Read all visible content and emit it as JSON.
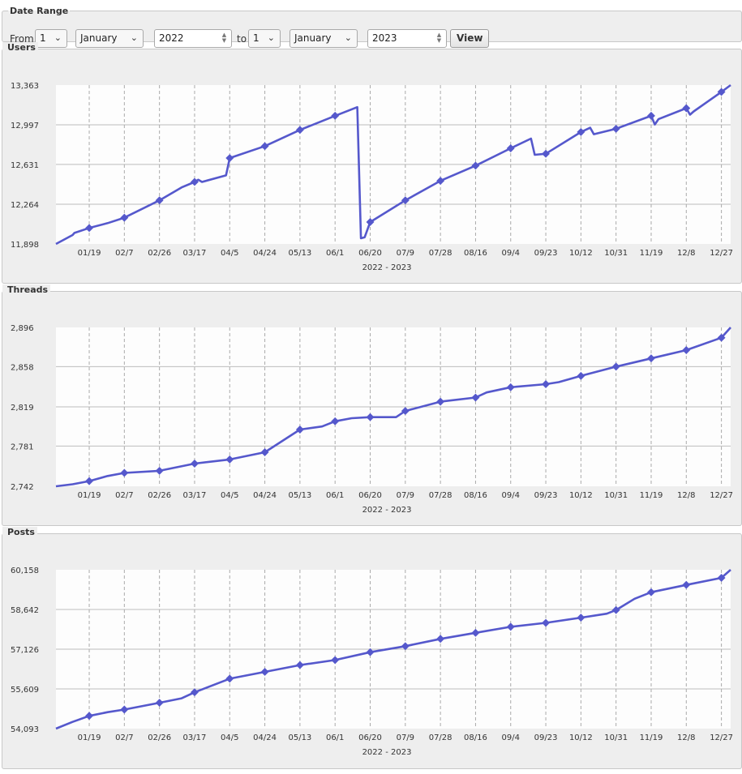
{
  "date_range": {
    "legend": "Date Range",
    "from_label": "From",
    "from_day": "1",
    "from_month": "January",
    "from_year": "2022",
    "to_label": "to",
    "to_day": "1",
    "to_month": "January",
    "to_year": "2023",
    "view_label": "View"
  },
  "colors": {
    "line": "#5558cc",
    "panel": "#eeeeee",
    "plot_bg": "#fdfdfd",
    "grid": "#bdbdbd"
  },
  "chart_data": [
    {
      "name": "users",
      "type": "line",
      "title": "Users",
      "xlabel": "2022 - 2023",
      "x_ticks": [
        "01/19",
        "02/7",
        "02/26",
        "03/17",
        "04/5",
        "04/24",
        "05/13",
        "06/1",
        "06/20",
        "07/9",
        "07/28",
        "08/16",
        "09/4",
        "09/23",
        "10/12",
        "10/31",
        "11/19",
        "12/8",
        "12/27"
      ],
      "y_ticks": [
        "11,898",
        "12,264",
        "12,631",
        "12,997",
        "13,363"
      ],
      "ylim": [
        11898,
        13363
      ],
      "x": [
        "01/01",
        "01/10",
        "01/11",
        "01/19",
        "01/29",
        "02/07",
        "02/26",
        "03/10",
        "03/17",
        "03/19",
        "03/21",
        "04/03",
        "04/05",
        "04/24",
        "05/13",
        "06/01",
        "06/13",
        "06/15",
        "06/17",
        "06/20",
        "07/09",
        "07/28",
        "08/16",
        "09/04",
        "09/15",
        "09/17",
        "09/23",
        "10/12",
        "10/17",
        "10/19",
        "10/31",
        "11/19",
        "11/21",
        "11/23",
        "12/08",
        "12/10",
        "12/12",
        "12/27",
        "01/01"
      ],
      "values": [
        11898,
        11980,
        12000,
        12045,
        12090,
        12140,
        12300,
        12420,
        12470,
        12490,
        12470,
        12530,
        12690,
        12800,
        12950,
        13080,
        13160,
        11950,
        11960,
        12100,
        12300,
        12480,
        12620,
        12780,
        12870,
        12720,
        12730,
        12930,
        12970,
        12910,
        12960,
        13080,
        13000,
        13050,
        13150,
        13090,
        13120,
        13300,
        13363
      ],
      "markers": [
        "01/19",
        "02/7",
        "02/26",
        "03/17",
        "04/5",
        "04/24",
        "05/13",
        "06/1",
        "06/20",
        "07/9",
        "07/28",
        "08/16",
        "09/4",
        "09/23",
        "10/12",
        "10/31",
        "11/19",
        "12/8",
        "12/27"
      ]
    },
    {
      "name": "threads",
      "type": "line",
      "title": "Threads",
      "xlabel": "2022 - 2023",
      "x_ticks": [
        "01/19",
        "02/7",
        "02/26",
        "03/17",
        "04/5",
        "04/24",
        "05/13",
        "06/1",
        "06/20",
        "07/9",
        "07/28",
        "08/16",
        "09/4",
        "09/23",
        "10/12",
        "10/31",
        "11/19",
        "12/8",
        "12/27"
      ],
      "y_ticks": [
        "2,742",
        "2,781",
        "2,819",
        "2,858",
        "2,896"
      ],
      "ylim": [
        2742,
        2896
      ],
      "x": [
        "01/01",
        "01/10",
        "01/19",
        "01/29",
        "02/07",
        "02/26",
        "03/17",
        "04/05",
        "04/24",
        "05/13",
        "05/25",
        "06/01",
        "06/10",
        "06/20",
        "07/04",
        "07/09",
        "07/28",
        "08/16",
        "08/22",
        "09/04",
        "09/23",
        "09/30",
        "10/12",
        "10/31",
        "11/19",
        "12/08",
        "12/27",
        "01/01"
      ],
      "values": [
        2742,
        2744,
        2747,
        2752,
        2755,
        2757,
        2764,
        2768,
        2775,
        2797,
        2800,
        2805,
        2808,
        2809,
        2809,
        2815,
        2824,
        2828,
        2833,
        2838,
        2841,
        2843,
        2849,
        2858,
        2866,
        2874,
        2886,
        2896
      ],
      "markers": [
        "01/19",
        "02/7",
        "02/26",
        "03/17",
        "04/5",
        "04/24",
        "05/13",
        "06/1",
        "06/20",
        "07/9",
        "07/28",
        "08/16",
        "09/4",
        "09/23",
        "10/12",
        "10/31",
        "11/19",
        "12/8",
        "12/27"
      ]
    },
    {
      "name": "posts",
      "type": "line",
      "title": "Posts",
      "xlabel": "2022 - 2023",
      "x_ticks": [
        "01/19",
        "02/7",
        "02/26",
        "03/17",
        "04/5",
        "04/24",
        "05/13",
        "06/1",
        "06/20",
        "07/9",
        "07/28",
        "08/16",
        "09/4",
        "09/23",
        "10/12",
        "10/31",
        "11/19",
        "12/8",
        "12/27"
      ],
      "y_ticks": [
        "54,093",
        "55,609",
        "57,126",
        "58,642",
        "60,158"
      ],
      "ylim": [
        54093,
        60158
      ],
      "x": [
        "01/01",
        "01/10",
        "01/19",
        "01/29",
        "02/07",
        "02/26",
        "03/10",
        "03/17",
        "04/05",
        "04/24",
        "05/13",
        "06/01",
        "06/20",
        "07/09",
        "07/28",
        "08/16",
        "09/04",
        "09/23",
        "10/12",
        "10/26",
        "10/31",
        "11/10",
        "11/19",
        "12/08",
        "12/27",
        "01/01"
      ],
      "values": [
        54093,
        54350,
        54580,
        54720,
        54820,
        55080,
        55250,
        55480,
        56000,
        56260,
        56520,
        56710,
        57010,
        57240,
        57520,
        57750,
        57980,
        58130,
        58330,
        58480,
        58620,
        59050,
        59300,
        59580,
        59850,
        60158
      ],
      "markers": [
        "01/19",
        "02/7",
        "02/26",
        "03/17",
        "04/5",
        "04/24",
        "05/13",
        "06/1",
        "06/20",
        "07/9",
        "07/28",
        "08/16",
        "09/4",
        "09/23",
        "10/12",
        "10/31",
        "11/19",
        "12/8",
        "12/27"
      ]
    }
  ]
}
